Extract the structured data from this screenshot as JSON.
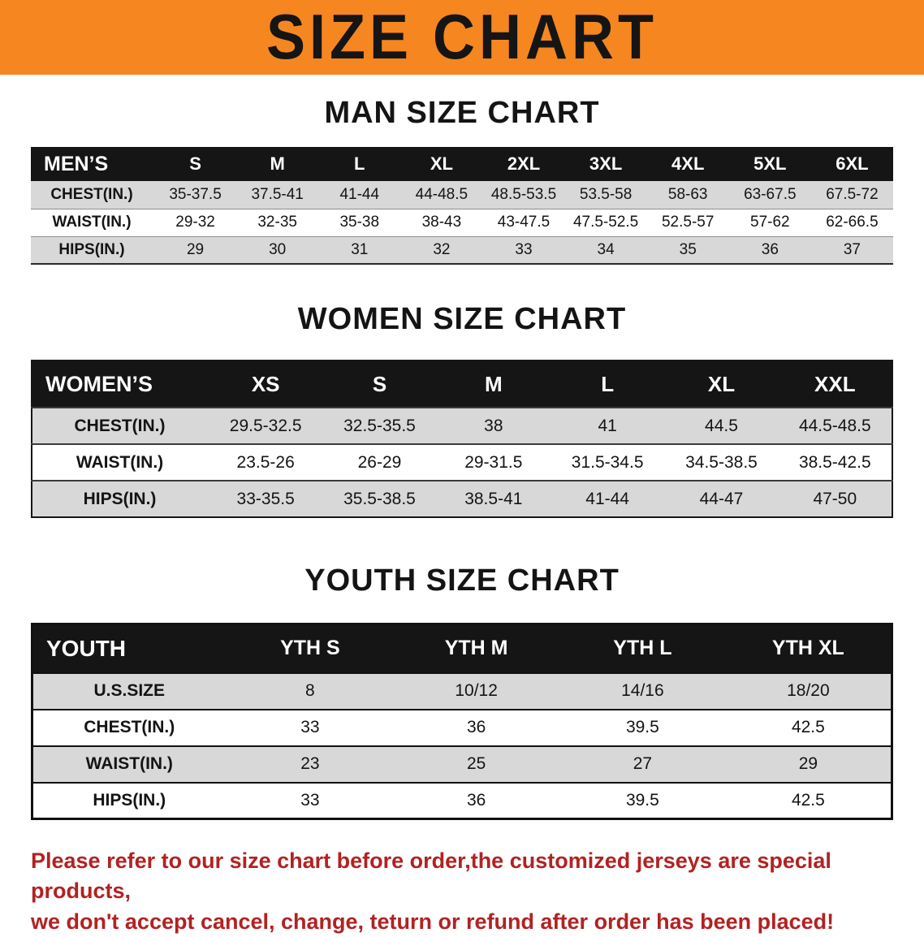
{
  "banner": {
    "title": "SIZE CHART"
  },
  "tables": {
    "men": {
      "heading": "MAN SIZE CHART",
      "header": [
        "MEN’S",
        "S",
        "M",
        "L",
        "XL",
        "2XL",
        "3XL",
        "4XL",
        "5XL",
        "6XL"
      ],
      "rows": [
        [
          "CHEST(IN.)",
          "35-37.5",
          "37.5-41",
          "41-44",
          "44-48.5",
          "48.5-53.5",
          "53.5-58",
          "58-63",
          "63-67.5",
          "67.5-72"
        ],
        [
          "WAIST(IN.)",
          "29-32",
          "32-35",
          "35-38",
          "38-43",
          "43-47.5",
          "47.5-52.5",
          "52.5-57",
          "57-62",
          "62-66.5"
        ],
        [
          "HIPS(IN.)",
          "29",
          "30",
          "31",
          "32",
          "33",
          "34",
          "35",
          "36",
          "37"
        ]
      ]
    },
    "women": {
      "heading": "WOMEN SIZE CHART",
      "header": [
        "WOMEN’S",
        "XS",
        "S",
        "M",
        "L",
        "XL",
        "XXL"
      ],
      "rows": [
        [
          "CHEST(IN.)",
          "29.5-32.5",
          "32.5-35.5",
          "38",
          "41",
          "44.5",
          "44.5-48.5"
        ],
        [
          "WAIST(IN.)",
          "23.5-26",
          "26-29",
          "29-31.5",
          "31.5-34.5",
          "34.5-38.5",
          "38.5-42.5"
        ],
        [
          "HIPS(IN.)",
          "33-35.5",
          "35.5-38.5",
          "38.5-41",
          "41-44",
          "44-47",
          "47-50"
        ]
      ]
    },
    "youth": {
      "heading": "YOUTH SIZE CHART",
      "header": [
        "YOUTH",
        "YTH S",
        "YTH M",
        "YTH L",
        "YTH XL"
      ],
      "rows": [
        [
          "U.S.SIZE",
          "8",
          "10/12",
          "14/16",
          "18/20"
        ],
        [
          "CHEST(IN.)",
          "33",
          "36",
          "39.5",
          "42.5"
        ],
        [
          "WAIST(IN.)",
          "23",
          "25",
          "27",
          "29"
        ],
        [
          "HIPS(IN.)",
          "33",
          "36",
          "39.5",
          "42.5"
        ]
      ]
    }
  },
  "note": {
    "line1": "Please refer to our size chart before order,the customized jerseys are special products,",
    "line2": "we don't accept cancel, change, teturn or refund after order has been placed!"
  },
  "colors": {
    "banner_orange": "#f6861f",
    "table_header_black": "#151515",
    "row_stripe_gray": "#d8d8d8",
    "note_red": "#b22222"
  }
}
